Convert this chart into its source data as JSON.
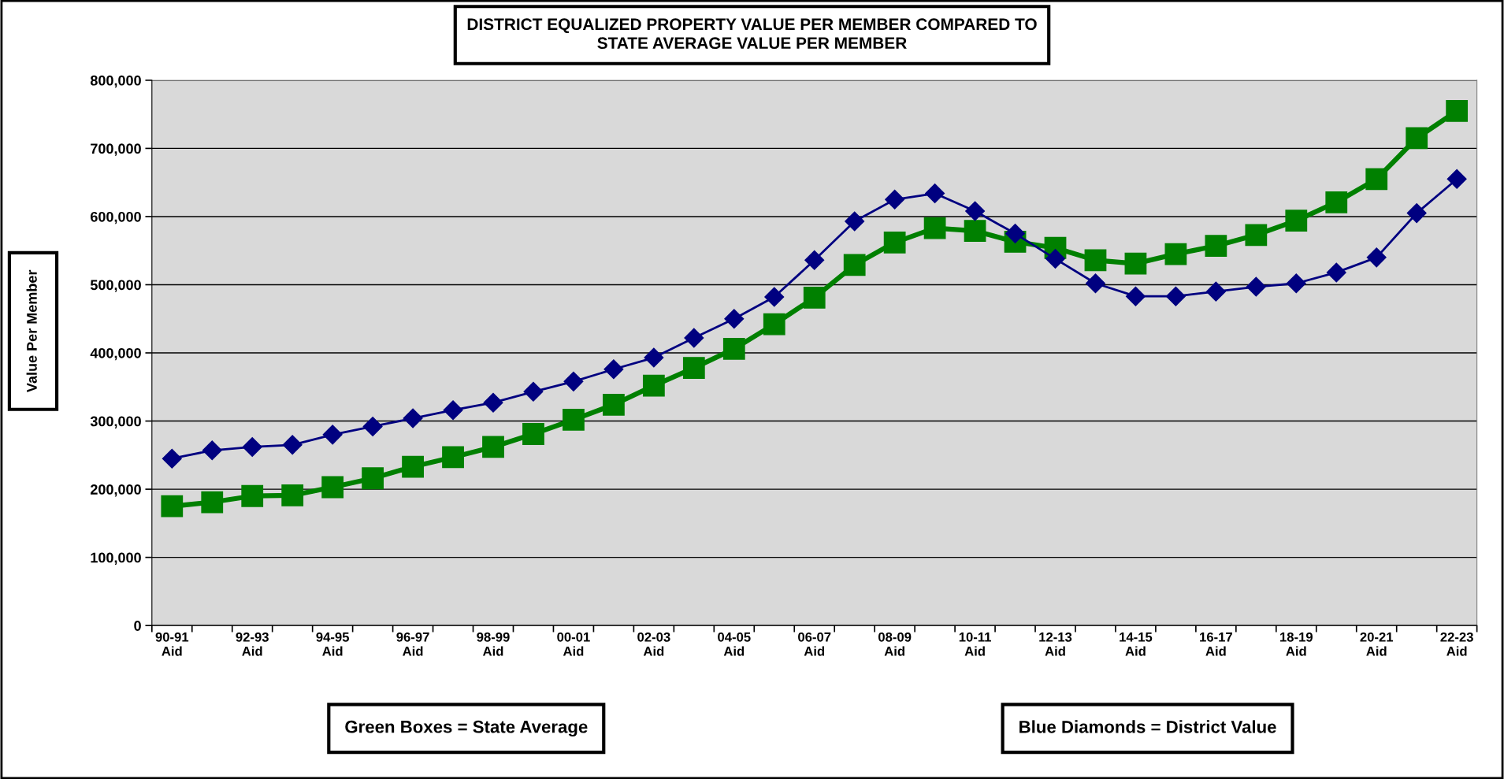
{
  "chart_data": {
    "type": "line",
    "title": "DISTRICT EQUALIZED PROPERTY VALUE PER MEMBER COMPARED TO\nSTATE AVERAGE VALUE PER MEMBER",
    "ylabel": "Value Per Member",
    "categories": [
      "90-91\nAid",
      null,
      "92-93\nAid",
      null,
      "94-95\nAid",
      null,
      "96-97\nAid",
      null,
      "98-99\nAid",
      null,
      "00-01\nAid",
      null,
      "02-03\nAid",
      null,
      "04-05\nAid",
      null,
      "06-07\nAid",
      null,
      "08-09\nAid",
      null,
      "10-11\nAid",
      null,
      "12-13\nAid",
      null,
      "14-15\nAid",
      null,
      "16-17\nAid",
      null,
      "18-19\nAid",
      null,
      "20-21\nAid",
      null,
      "22-23\nAid"
    ],
    "series": [
      {
        "color": "#008000",
        "marker": "square",
        "values": [
          175000,
          181000,
          190000,
          191000,
          203000,
          216000,
          233000,
          247000,
          262000,
          281000,
          302000,
          324000,
          352000,
          378000,
          406000,
          442000,
          481000,
          529000,
          562000,
          583000,
          579000,
          563000,
          554000,
          536000,
          531000,
          545000,
          557000,
          573000,
          594000,
          621000,
          655000,
          715000,
          755000
        ]
      },
      {
        "color": "#000080",
        "marker": "diamond",
        "values": [
          245000,
          257000,
          262000,
          265000,
          280000,
          292000,
          304000,
          316000,
          327000,
          343000,
          358000,
          376000,
          393000,
          422000,
          450000,
          482000,
          536000,
          593000,
          625000,
          634000,
          608000,
          575000,
          538000,
          502000,
          483000,
          483000,
          490000,
          497000,
          502000,
          518000,
          540000,
          605000,
          655000
        ]
      }
    ],
    "ylim": [
      0,
      800000
    ],
    "yticks": [
      {
        "value": 0,
        "label": "0"
      },
      {
        "value": 100000,
        "label": "100,000"
      },
      {
        "value": 200000,
        "label": "200,000"
      },
      {
        "value": 300000,
        "label": "300,000"
      },
      {
        "value": 400000,
        "label": "400,000"
      },
      {
        "value": 500000,
        "label": "500,000"
      },
      {
        "value": 600000,
        "label": "600,000"
      },
      {
        "value": 700000,
        "label": "700,000"
      },
      {
        "value": 800000,
        "label": "800,000"
      }
    ],
    "grid": "y",
    "annotations": [
      "Green Boxes = State Average",
      "Blue Diamonds = District Value"
    ]
  }
}
